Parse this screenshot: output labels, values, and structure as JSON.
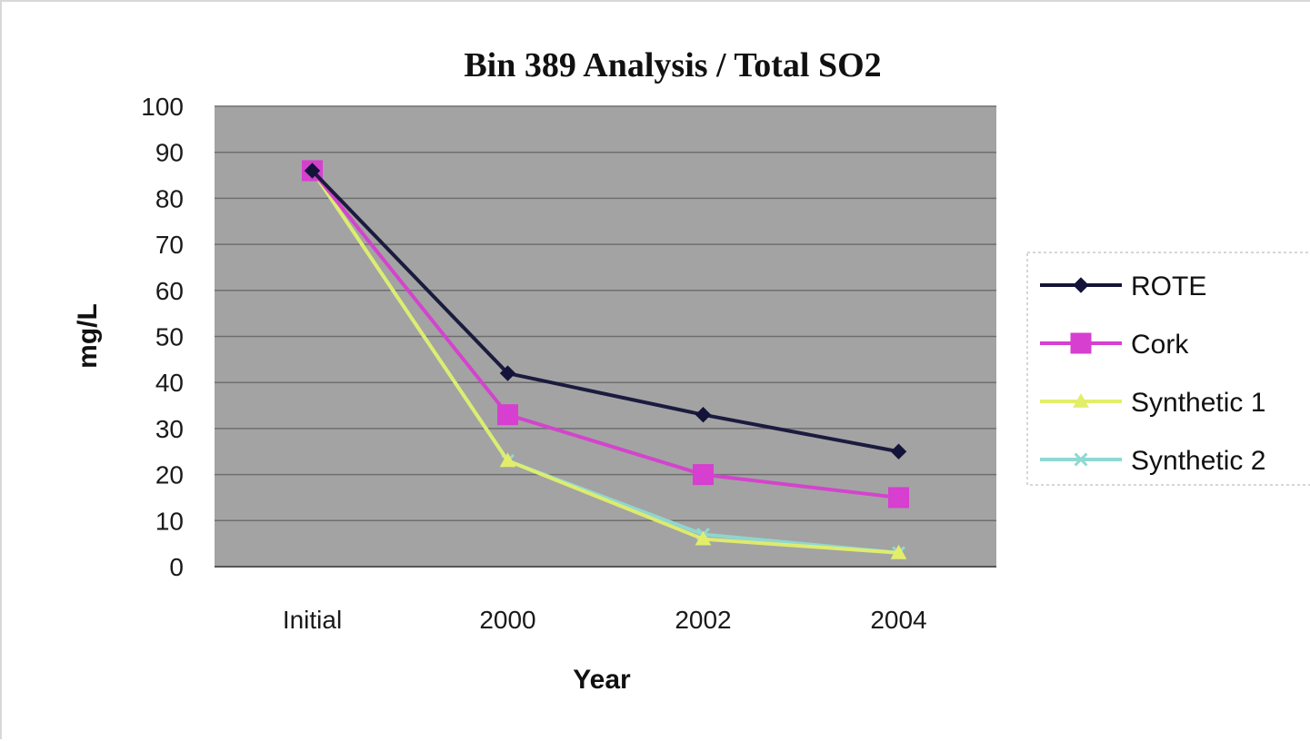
{
  "chart_data": {
    "type": "line",
    "title": "Bin 389 Analysis / Total SO2",
    "xlabel": "Year",
    "ylabel": "mg/L",
    "categories": [
      "Initial",
      "2000",
      "2002",
      "2004"
    ],
    "ylim": [
      0,
      100
    ],
    "yticks": [
      0,
      10,
      20,
      30,
      40,
      50,
      60,
      70,
      80,
      90,
      100
    ],
    "grid": true,
    "legend_position": "right",
    "plot_background": "#a3a3a3",
    "series": [
      {
        "name": "ROTE",
        "values": [
          86,
          42,
          33,
          25
        ],
        "color": "#14143a",
        "marker": "diamond"
      },
      {
        "name": "Cork",
        "values": [
          86,
          33,
          20,
          15
        ],
        "color": "#d63fd0",
        "marker": "square"
      },
      {
        "name": "Synthetic 1",
        "values": [
          86,
          23,
          6,
          3
        ],
        "color": "#e2ee6a",
        "marker": "triangle"
      },
      {
        "name": "Synthetic 2",
        "values": [
          86,
          23,
          7,
          3
        ],
        "color": "#8fd9d2",
        "marker": "x"
      }
    ]
  }
}
